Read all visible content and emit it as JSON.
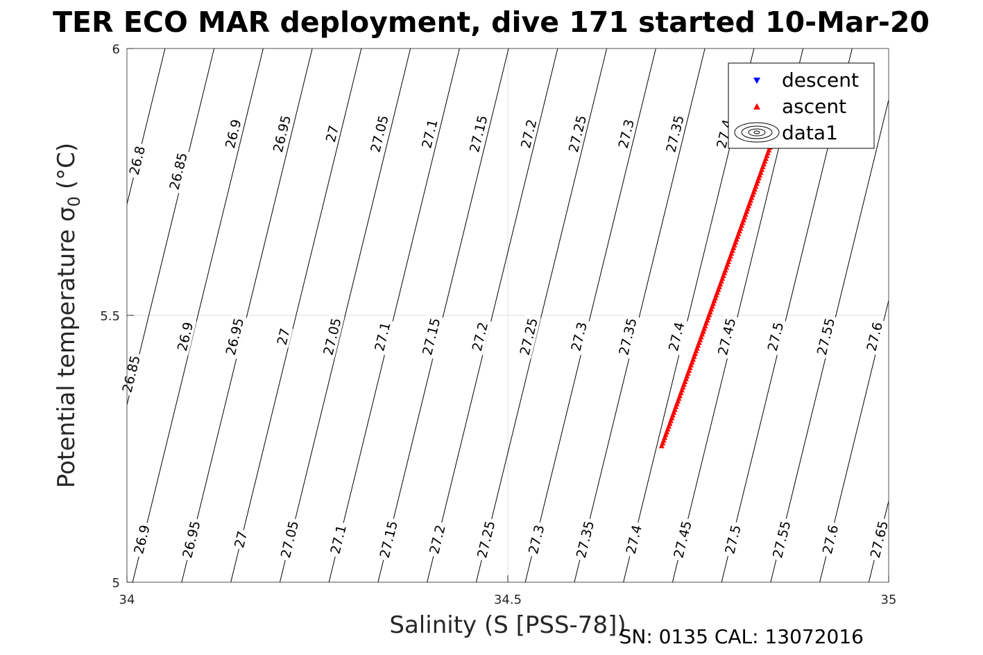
{
  "chart_data": {
    "type": "scatter",
    "title": "TER ECO MAR deployment, dive 171 started 10-Mar-20",
    "xlabel": "Salinity (S [PSS-78])",
    "ylabel_main": "Potential temperature σ",
    "ylabel_sub": "0",
    "ylabel_unit": "(°C)",
    "xlim": [
      34,
      35
    ],
    "ylim": [
      5,
      6
    ],
    "x_ticks": [
      "34",
      "34.5",
      "35"
    ],
    "y_ticks": [
      "5",
      "5.5",
      "6"
    ],
    "grid": true,
    "legend": {
      "position": "top-right",
      "entries": [
        {
          "label": "descent",
          "marker": "triangle-down",
          "color": "#0000ff"
        },
        {
          "label": "ascent",
          "marker": "triangle-up",
          "color": "#ff0000"
        },
        {
          "label": "data1",
          "marker": "contour",
          "color": "#000000"
        }
      ]
    },
    "series": [
      {
        "name": "descent",
        "color": "#0000ff",
        "points": []
      },
      {
        "name": "ascent",
        "color": "#ff0000",
        "start": [
          34.702,
          5.255
        ],
        "end": [
          34.848,
          5.83
        ]
      }
    ],
    "contour_levels": [
      "26.8",
      "26.85",
      "26.9",
      "26.95",
      "27",
      "27.05",
      "27.1",
      "27.15",
      "27.2",
      "27.25",
      "27.3",
      "27.35",
      "27.4",
      "27.45",
      "27.5",
      "27.55",
      "27.6",
      "27.65"
    ],
    "contour_labels": [
      {
        "text": "26.8",
        "s": 34.014,
        "t": 5.79
      },
      {
        "text": "26.85",
        "s": 34.068,
        "t": 5.77
      },
      {
        "text": "26.9",
        "s": 34.14,
        "t": 5.84
      },
      {
        "text": "26.95",
        "s": 34.204,
        "t": 5.84
      },
      {
        "text": "27",
        "s": 34.27,
        "t": 5.84
      },
      {
        "text": "27.05",
        "s": 34.332,
        "t": 5.84
      },
      {
        "text": "27.1",
        "s": 34.398,
        "t": 5.84
      },
      {
        "text": "27.15",
        "s": 34.462,
        "t": 5.84
      },
      {
        "text": "27.2",
        "s": 34.528,
        "t": 5.84
      },
      {
        "text": "27.25",
        "s": 34.592,
        "t": 5.84
      },
      {
        "text": "27.3",
        "s": 34.656,
        "t": 5.84
      },
      {
        "text": "27.35",
        "s": 34.72,
        "t": 5.84
      },
      {
        "text": "27.4",
        "s": 34.785,
        "t": 5.84
      },
      {
        "text": "26.85",
        "s": 34.006,
        "t": 5.39
      },
      {
        "text": "26.9",
        "s": 34.077,
        "t": 5.46
      },
      {
        "text": "26.95",
        "s": 34.142,
        "t": 5.46
      },
      {
        "text": "27",
        "s": 34.206,
        "t": 5.46
      },
      {
        "text": "27.05",
        "s": 34.27,
        "t": 5.46
      },
      {
        "text": "27.1",
        "s": 34.336,
        "t": 5.46
      },
      {
        "text": "27.15",
        "s": 34.4,
        "t": 5.46
      },
      {
        "text": "27.2",
        "s": 34.464,
        "t": 5.46
      },
      {
        "text": "27.25",
        "s": 34.528,
        "t": 5.46
      },
      {
        "text": "27.3",
        "s": 34.594,
        "t": 5.46
      },
      {
        "text": "27.35",
        "s": 34.658,
        "t": 5.46
      },
      {
        "text": "27.4",
        "s": 34.722,
        "t": 5.46
      },
      {
        "text": "27.45",
        "s": 34.788,
        "t": 5.46
      },
      {
        "text": "27.5",
        "s": 34.852,
        "t": 5.46
      },
      {
        "text": "27.55",
        "s": 34.918,
        "t": 5.46
      },
      {
        "text": "27.6",
        "s": 34.982,
        "t": 5.46
      },
      {
        "text": "26.9",
        "s": 34.02,
        "t": 5.08
      },
      {
        "text": "26.95",
        "s": 34.085,
        "t": 5.08
      },
      {
        "text": "27",
        "s": 34.15,
        "t": 5.08
      },
      {
        "text": "27.05",
        "s": 34.214,
        "t": 5.08
      },
      {
        "text": "27.1",
        "s": 34.278,
        "t": 5.08
      },
      {
        "text": "27.15",
        "s": 34.344,
        "t": 5.08
      },
      {
        "text": "27.2",
        "s": 34.408,
        "t": 5.08
      },
      {
        "text": "27.25",
        "s": 34.472,
        "t": 5.08
      },
      {
        "text": "27.3",
        "s": 34.538,
        "t": 5.08
      },
      {
        "text": "27.35",
        "s": 34.602,
        "t": 5.08
      },
      {
        "text": "27.4",
        "s": 34.666,
        "t": 5.08
      },
      {
        "text": "27.45",
        "s": 34.73,
        "t": 5.08
      },
      {
        "text": "27.5",
        "s": 34.796,
        "t": 5.08
      },
      {
        "text": "27.55",
        "s": 34.86,
        "t": 5.08
      },
      {
        "text": "27.6",
        "s": 34.924,
        "t": 5.08
      },
      {
        "text": "27.65",
        "s": 34.988,
        "t": 5.08
      }
    ]
  },
  "footer": "SN: 0135  CAL: 13072016"
}
